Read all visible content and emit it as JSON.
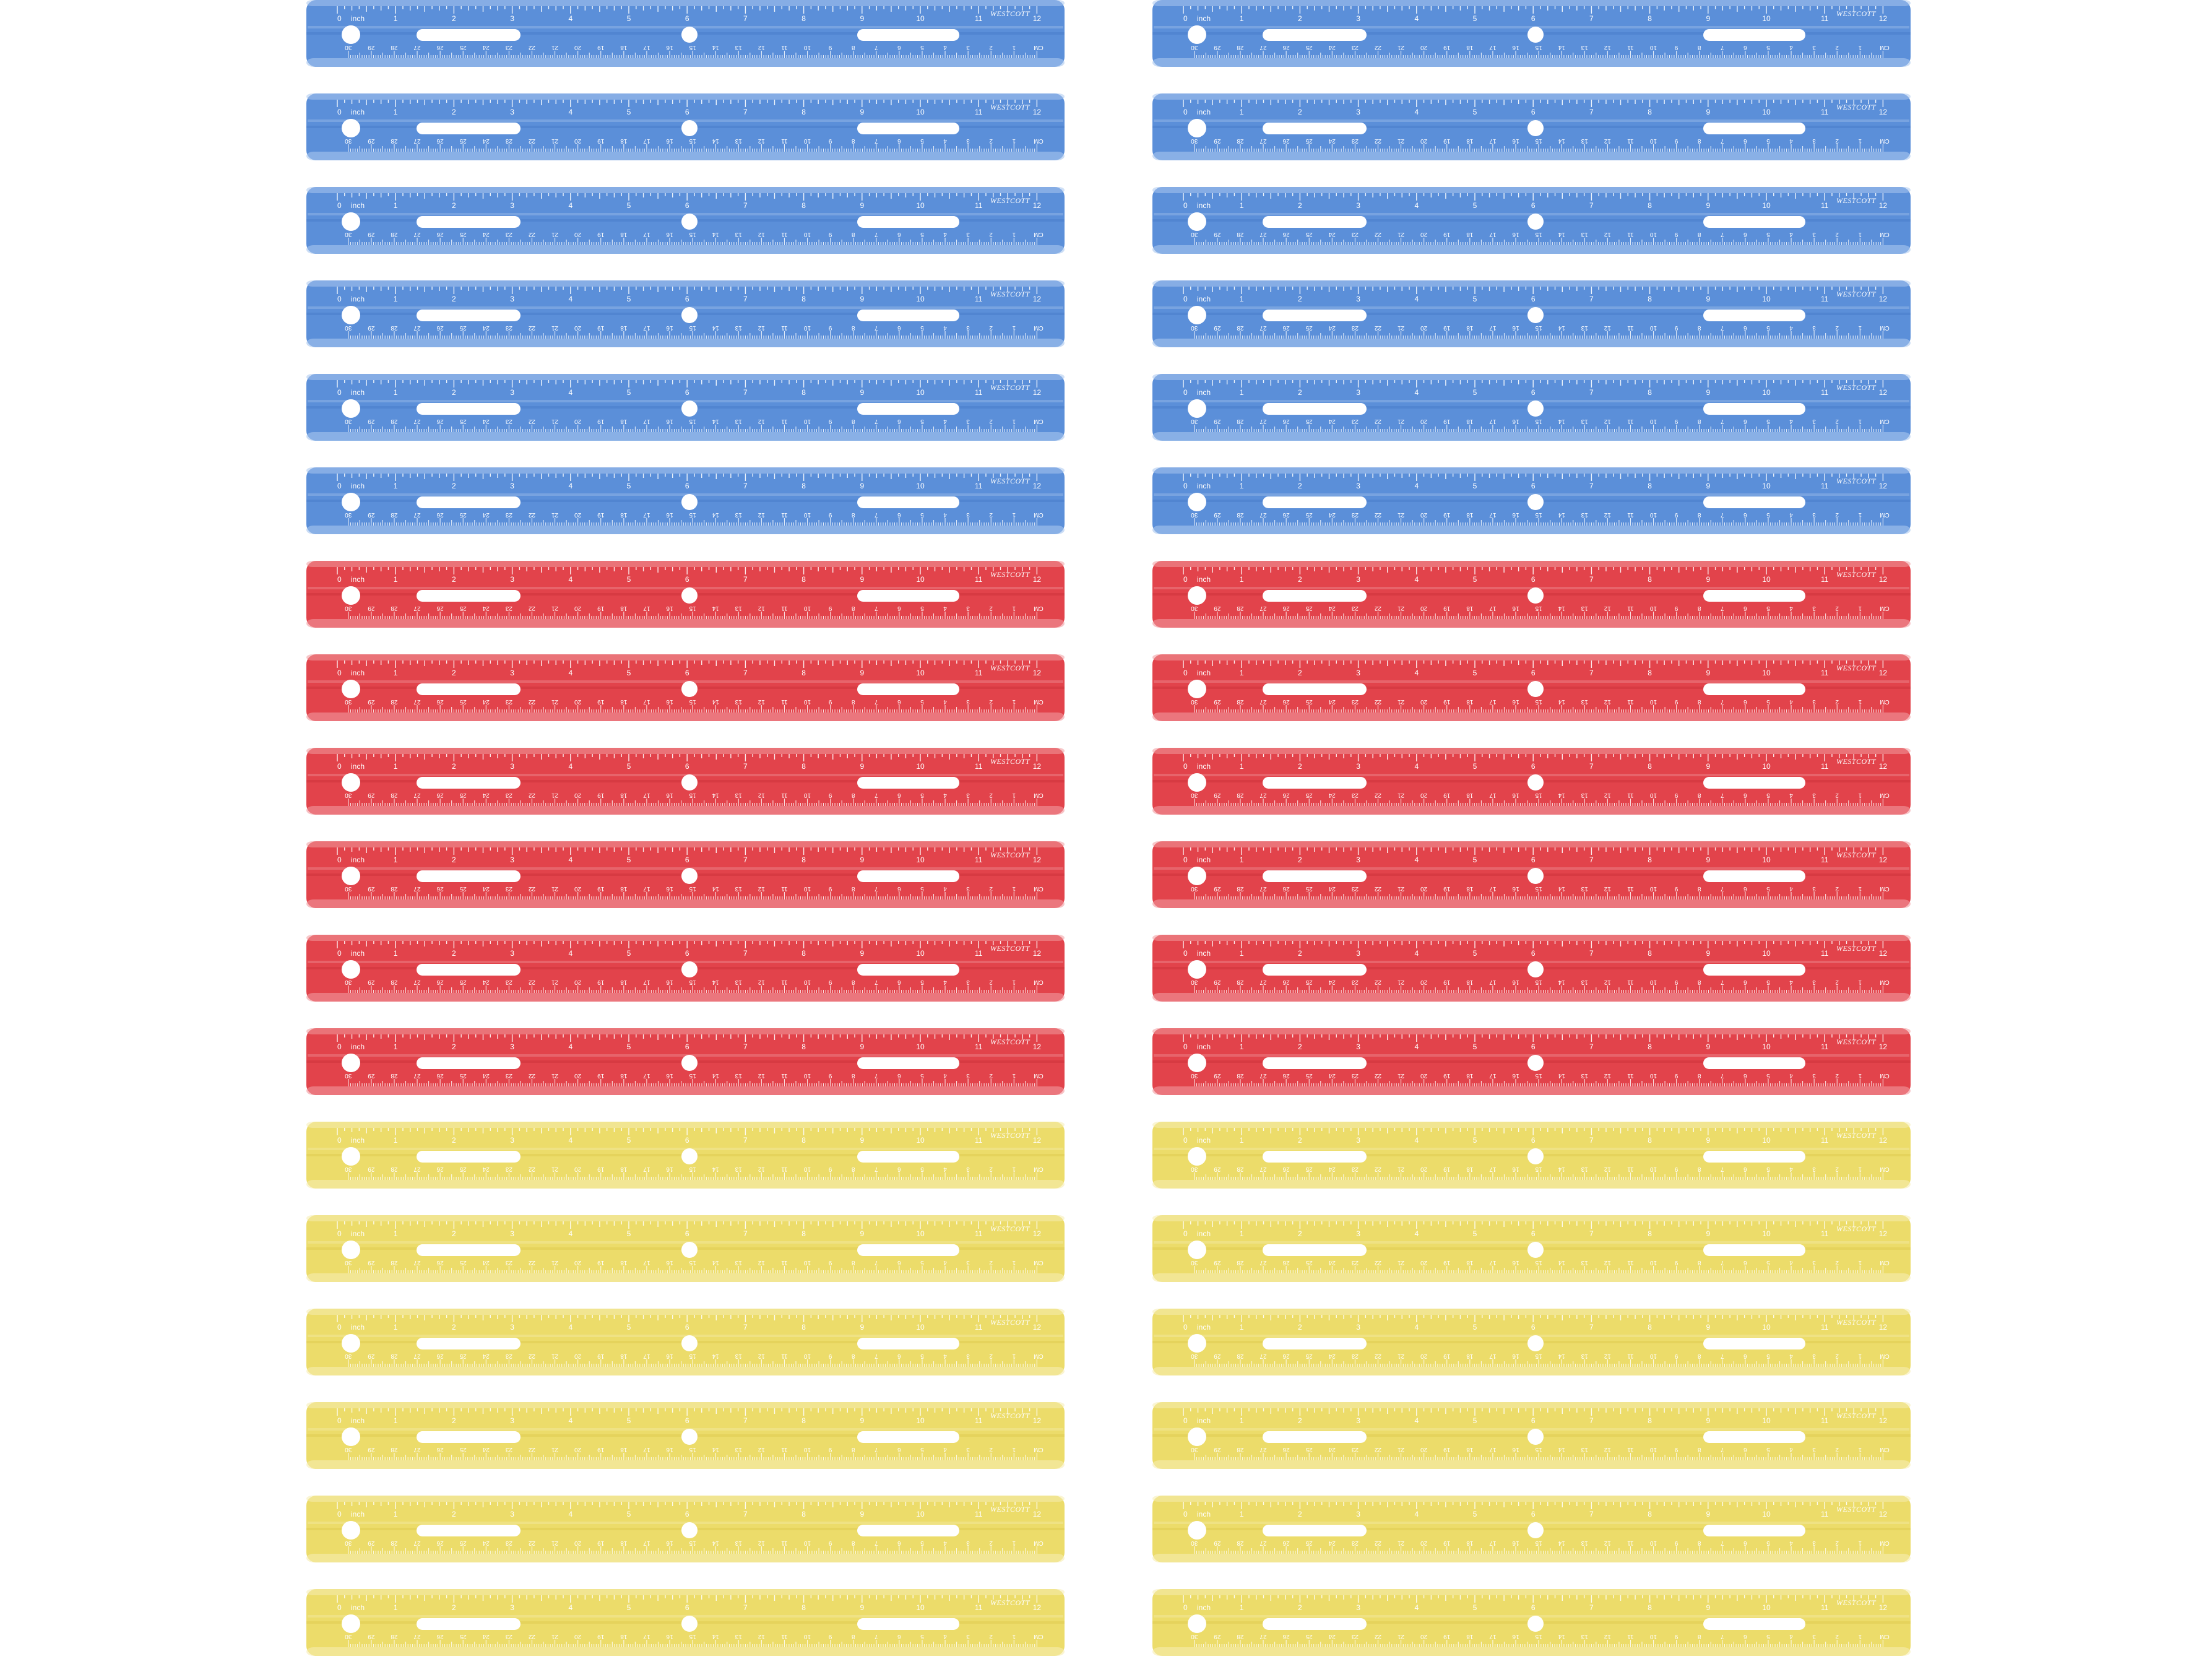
{
  "ruler": {
    "brand": "WESTCOTT",
    "inch_label": "inch",
    "cm_label": "CM",
    "inch_numbers": [
      "0",
      "1",
      "2",
      "3",
      "4",
      "5",
      "6",
      "7",
      "8",
      "9",
      "10",
      "11",
      "12"
    ],
    "cm_numbers": [
      "30",
      "29",
      "28",
      "27",
      "26",
      "25",
      "24",
      "23",
      "22",
      "21",
      "20",
      "19",
      "18",
      "17",
      "16",
      "15",
      "14",
      "13",
      "12",
      "11",
      "10",
      "9",
      "8",
      "7",
      "6",
      "5",
      "4",
      "3",
      "2",
      "1"
    ]
  },
  "columns": 2,
  "colors": {
    "blue": {
      "body": "#5b8fd9",
      "edge": "#3f72c4",
      "light": "#a9c6ef",
      "mark": "#ffffff"
    },
    "red": {
      "body": "#e2434b",
      "edge": "#c22a33",
      "light": "#f19a9e",
      "mark": "#ffffff"
    },
    "yellow": {
      "body": "#ecdc6a",
      "edge": "#d9c443",
      "light": "#f6edb0",
      "mark": "#ffffff"
    }
  },
  "rows": [
    "blue",
    "blue",
    "blue",
    "blue",
    "blue",
    "blue",
    "red",
    "red",
    "red",
    "red",
    "red",
    "red",
    "yellow",
    "yellow",
    "yellow",
    "yellow",
    "yellow",
    "yellow"
  ]
}
